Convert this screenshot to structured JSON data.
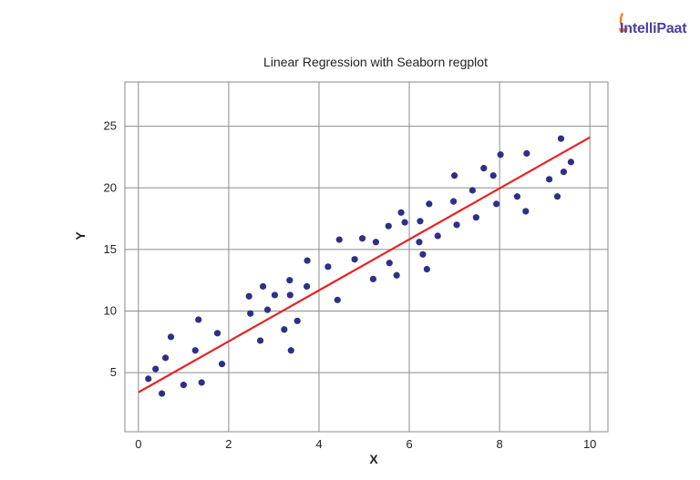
{
  "brand": {
    "name": "IntelliPaat",
    "color": "#4b3fa6",
    "accent": "#ff7a1a"
  },
  "chart_data": {
    "type": "scatter",
    "title": "Linear Regression with Seaborn regplot",
    "xlabel": "X",
    "ylabel": "Y",
    "xlim": [
      -0.3,
      10.4
    ],
    "ylim": [
      0.2,
      28.6
    ],
    "xticks": [
      0,
      2,
      4,
      6,
      8,
      10
    ],
    "yticks": [
      5,
      10,
      15,
      20,
      25
    ],
    "grid": true,
    "point_color": "#2e2f86",
    "line_color": "#e62323",
    "points": [
      {
        "x": 0.22,
        "y": 4.5
      },
      {
        "x": 0.38,
        "y": 5.3
      },
      {
        "x": 0.52,
        "y": 3.3
      },
      {
        "x": 0.6,
        "y": 6.2
      },
      {
        "x": 0.72,
        "y": 7.9
      },
      {
        "x": 1.0,
        "y": 4.0
      },
      {
        "x": 1.26,
        "y": 6.8
      },
      {
        "x": 1.33,
        "y": 9.3
      },
      {
        "x": 1.4,
        "y": 4.2
      },
      {
        "x": 1.75,
        "y": 8.2
      },
      {
        "x": 1.85,
        "y": 5.7
      },
      {
        "x": 2.45,
        "y": 11.2
      },
      {
        "x": 2.48,
        "y": 9.8
      },
      {
        "x": 2.7,
        "y": 7.6
      },
      {
        "x": 2.76,
        "y": 12.0
      },
      {
        "x": 2.86,
        "y": 10.1
      },
      {
        "x": 3.02,
        "y": 11.3
      },
      {
        "x": 3.23,
        "y": 8.5
      },
      {
        "x": 3.35,
        "y": 12.5
      },
      {
        "x": 3.36,
        "y": 11.3
      },
      {
        "x": 3.38,
        "y": 6.8
      },
      {
        "x": 3.52,
        "y": 9.2
      },
      {
        "x": 3.73,
        "y": 12.0
      },
      {
        "x": 3.74,
        "y": 14.1
      },
      {
        "x": 4.2,
        "y": 13.6
      },
      {
        "x": 4.41,
        "y": 10.9
      },
      {
        "x": 4.45,
        "y": 15.8
      },
      {
        "x": 4.79,
        "y": 14.2
      },
      {
        "x": 4.96,
        "y": 15.9
      },
      {
        "x": 5.2,
        "y": 12.6
      },
      {
        "x": 5.26,
        "y": 15.6
      },
      {
        "x": 5.54,
        "y": 16.9
      },
      {
        "x": 5.56,
        "y": 13.9
      },
      {
        "x": 5.72,
        "y": 12.9
      },
      {
        "x": 5.82,
        "y": 18.0
      },
      {
        "x": 5.9,
        "y": 17.2
      },
      {
        "x": 6.22,
        "y": 15.6
      },
      {
        "x": 6.24,
        "y": 17.3
      },
      {
        "x": 6.3,
        "y": 14.6
      },
      {
        "x": 6.39,
        "y": 13.4
      },
      {
        "x": 6.44,
        "y": 18.7
      },
      {
        "x": 6.63,
        "y": 16.1
      },
      {
        "x": 6.98,
        "y": 18.9
      },
      {
        "x": 7.0,
        "y": 21.0
      },
      {
        "x": 7.05,
        "y": 17.0
      },
      {
        "x": 7.4,
        "y": 19.8
      },
      {
        "x": 7.48,
        "y": 17.6
      },
      {
        "x": 7.65,
        "y": 21.6
      },
      {
        "x": 7.86,
        "y": 21.0
      },
      {
        "x": 7.93,
        "y": 18.7
      },
      {
        "x": 8.02,
        "y": 22.7
      },
      {
        "x": 8.39,
        "y": 19.3
      },
      {
        "x": 8.58,
        "y": 18.1
      },
      {
        "x": 8.6,
        "y": 22.8
      },
      {
        "x": 9.1,
        "y": 20.7
      },
      {
        "x": 9.28,
        "y": 19.3
      },
      {
        "x": 9.36,
        "y": 24.0
      },
      {
        "x": 9.42,
        "y": 21.3
      },
      {
        "x": 9.58,
        "y": 22.1
      }
    ],
    "regression_line": {
      "x": [
        0.0,
        10.0
      ],
      "y": [
        3.4,
        24.1
      ]
    }
  }
}
